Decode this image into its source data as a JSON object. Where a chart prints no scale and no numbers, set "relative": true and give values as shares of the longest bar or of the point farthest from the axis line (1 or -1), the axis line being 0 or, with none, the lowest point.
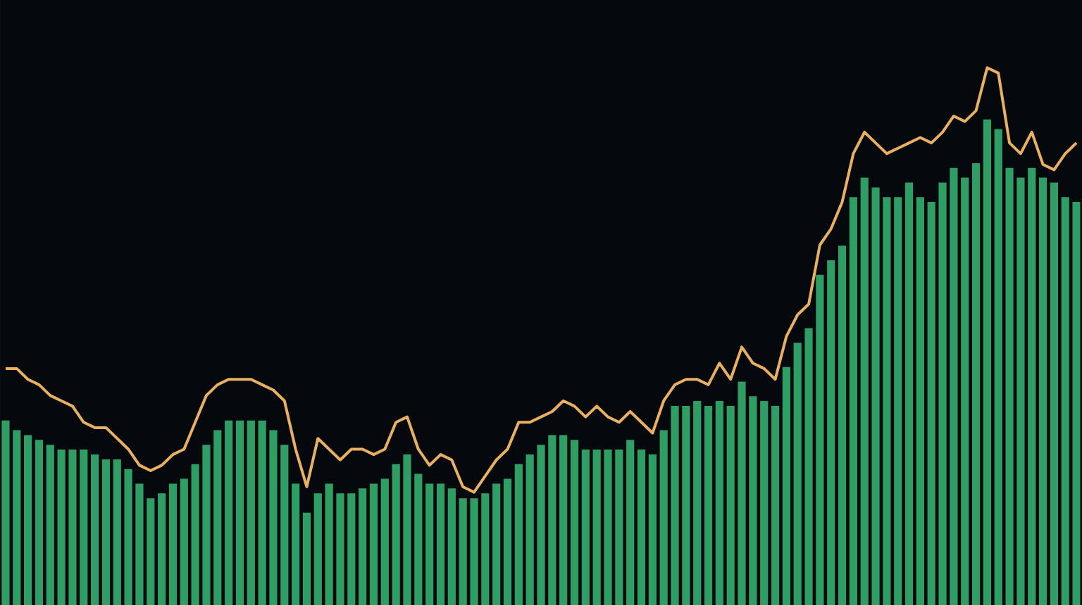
{
  "chart_data": [
    {
      "type": "bar",
      "relative": true,
      "color": "#2e9e64",
      "categories": [
        null,
        null,
        null,
        null,
        null,
        null,
        null,
        null,
        null,
        null,
        null,
        null,
        null,
        null,
        null,
        null,
        null,
        null,
        null,
        null,
        null,
        null,
        null,
        null,
        null,
        null,
        null,
        null,
        null,
        null,
        null,
        null,
        null,
        null,
        null,
        null,
        null,
        null,
        null,
        null,
        null,
        null,
        null,
        null,
        null,
        null,
        null,
        null,
        null,
        null,
        null,
        null,
        null,
        null,
        null,
        null,
        null,
        null,
        null,
        null,
        null,
        null,
        null,
        null,
        null,
        null,
        null,
        null,
        null,
        null,
        null,
        null,
        null,
        null,
        null,
        null,
        null,
        null,
        null,
        null,
        null,
        null,
        null,
        null,
        null,
        null,
        null,
        null,
        null,
        null,
        null,
        null,
        null,
        null,
        null,
        null,
        null
      ],
      "values": [
        0.38,
        0.36,
        0.35,
        0.34,
        0.33,
        0.32,
        0.32,
        0.32,
        0.31,
        0.3,
        0.3,
        0.28,
        0.25,
        0.22,
        0.23,
        0.25,
        0.26,
        0.29,
        0.33,
        0.36,
        0.38,
        0.38,
        0.38,
        0.38,
        0.36,
        0.33,
        0.25,
        0.19,
        0.23,
        0.25,
        0.23,
        0.23,
        0.24,
        0.25,
        0.26,
        0.29,
        0.31,
        0.27,
        0.25,
        0.25,
        0.24,
        0.22,
        0.22,
        0.23,
        0.25,
        0.26,
        0.29,
        0.31,
        0.33,
        0.35,
        0.35,
        0.34,
        0.32,
        0.32,
        0.32,
        0.32,
        0.34,
        0.32,
        0.31,
        0.36,
        0.41,
        0.41,
        0.42,
        0.41,
        0.42,
        0.41,
        0.46,
        0.43,
        0.42,
        0.41,
        0.49,
        0.54,
        0.57,
        0.68,
        0.71,
        0.74,
        0.84,
        0.88,
        0.86,
        0.84,
        0.84,
        0.87,
        0.84,
        0.83,
        0.87,
        0.9,
        0.88,
        0.91,
        1,
        0.98,
        0.9,
        0.88,
        0.9,
        0.88,
        0.87,
        0.84,
        0.83
      ]
    },
    {
      "type": "line",
      "relative": true,
      "color": "#e8b060",
      "categories": [
        null,
        null,
        null,
        null,
        null,
        null,
        null,
        null,
        null,
        null,
        null,
        null,
        null,
        null,
        null,
        null,
        null,
        null,
        null,
        null,
        null,
        null,
        null,
        null,
        null,
        null,
        null,
        null,
        null,
        null,
        null,
        null,
        null,
        null,
        null,
        null,
        null,
        null,
        null,
        null,
        null,
        null,
        null,
        null,
        null,
        null,
        null,
        null,
        null,
        null,
        null,
        null,
        null,
        null,
        null,
        null,
        null,
        null,
        null,
        null,
        null,
        null,
        null,
        null,
        null,
        null,
        null,
        null,
        null,
        null,
        null,
        null,
        null,
        null,
        null,
        null,
        null,
        null,
        null,
        null,
        null,
        null,
        null,
        null,
        null,
        null,
        null,
        null,
        null,
        null,
        null,
        null,
        null,
        null,
        null,
        null,
        null
      ],
      "values": [
        0.44,
        0.44,
        0.42,
        0.41,
        0.39,
        0.38,
        0.37,
        0.34,
        0.33,
        0.33,
        0.31,
        0.29,
        0.26,
        0.25,
        0.26,
        0.28,
        0.29,
        0.34,
        0.39,
        0.41,
        0.42,
        0.42,
        0.42,
        0.41,
        0.4,
        0.38,
        0.29,
        0.22,
        0.31,
        0.29,
        0.27,
        0.29,
        0.29,
        0.28,
        0.29,
        0.34,
        0.35,
        0.29,
        0.26,
        0.28,
        0.27,
        0.22,
        0.21,
        0.24,
        0.27,
        0.29,
        0.34,
        0.34,
        0.35,
        0.36,
        0.38,
        0.37,
        0.35,
        0.37,
        0.35,
        0.34,
        0.36,
        0.34,
        0.32,
        0.38,
        0.41,
        0.42,
        0.42,
        0.41,
        0.45,
        0.42,
        0.48,
        0.45,
        0.44,
        0.42,
        0.5,
        0.54,
        0.56,
        0.67,
        0.7,
        0.75,
        0.84,
        0.88,
        0.86,
        0.84,
        0.85,
        0.86,
        0.87,
        0.86,
        0.88,
        0.91,
        0.9,
        0.92,
        1,
        0.99,
        0.86,
        0.84,
        0.88,
        0.82,
        0.81,
        0.84,
        0.86
      ]
    }
  ]
}
